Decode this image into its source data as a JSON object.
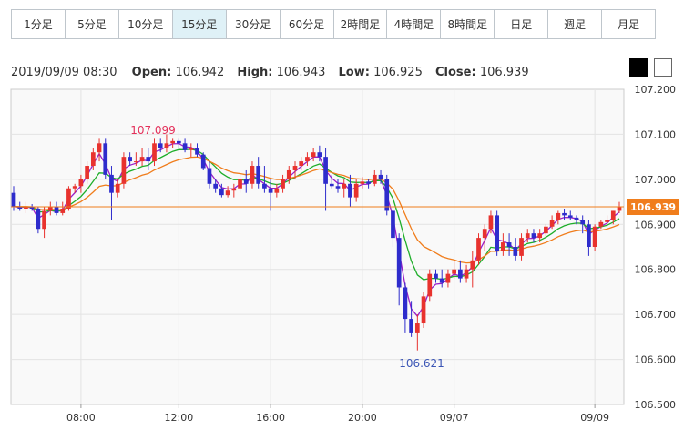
{
  "tabs": [
    {
      "label": "1分足",
      "active": false
    },
    {
      "label": "5分足",
      "active": false
    },
    {
      "label": "10分足",
      "active": false
    },
    {
      "label": "15分足",
      "active": true
    },
    {
      "label": "30分足",
      "active": false
    },
    {
      "label": "60分足",
      "active": false
    },
    {
      "label": "2時間足",
      "active": false
    },
    {
      "label": "4時間足",
      "active": false
    },
    {
      "label": "8時間足",
      "active": false
    },
    {
      "label": "日足",
      "active": false
    },
    {
      "label": "週足",
      "active": false
    },
    {
      "label": "月足",
      "active": false
    }
  ],
  "header": {
    "datetime": "2019/09/09 08:30",
    "open_label": "Open:",
    "open": "106.942",
    "high_label": "High:",
    "high": "106.943",
    "low_label": "Low:",
    "low": "106.925",
    "close_label": "Close:",
    "close": "106.939"
  },
  "theme": {
    "dark_swatch": "#000000",
    "light_swatch": "#ffffff"
  },
  "colors": {
    "up": "#e8322e",
    "down": "#2e2ccc",
    "ma_short": "#9a1fc9",
    "ma_mid": "#1fae2a",
    "ma_long": "#f07d1c",
    "price_line": "#f07d1c",
    "grid": "#e3e3e3",
    "plot_bg": "#f9f9f9",
    "axis_text": "#333333",
    "annotation_high": "#e4305a",
    "annotation_low": "#3b55b5"
  },
  "chart_data": {
    "type": "candlestick",
    "ylim": [
      106.5,
      107.2
    ],
    "yticks": [
      "107.200",
      "107.100",
      "107.000",
      "106.900",
      "106.800",
      "106.700",
      "106.600",
      "106.500"
    ],
    "xticks": [
      "08:00",
      "12:00",
      "16:00",
      "20:00",
      "09/07",
      "09/09"
    ],
    "current_price": "106.939",
    "annotations": {
      "high": "107.099",
      "low": "106.621"
    },
    "candles": [
      [
        106.97,
        106.985,
        106.93,
        106.94
      ],
      [
        106.94,
        106.95,
        106.93,
        106.935
      ],
      [
        106.935,
        106.95,
        106.925,
        106.94
      ],
      [
        106.94,
        106.945,
        106.93,
        106.935
      ],
      [
        106.935,
        106.94,
        106.88,
        106.89
      ],
      [
        106.89,
        106.94,
        106.87,
        106.93
      ],
      [
        106.93,
        106.95,
        106.92,
        106.94
      ],
      [
        106.94,
        106.95,
        106.92,
        106.925
      ],
      [
        106.925,
        106.95,
        106.92,
        106.935
      ],
      [
        106.935,
        106.985,
        106.93,
        106.98
      ],
      [
        106.98,
        106.99,
        106.97,
        106.985
      ],
      [
        106.985,
        107.01,
        106.97,
        107.0
      ],
      [
        107.0,
        107.04,
        106.99,
        107.03
      ],
      [
        107.03,
        107.07,
        107.02,
        107.06
      ],
      [
        107.06,
        107.09,
        107.04,
        107.08
      ],
      [
        107.08,
        107.09,
        107.0,
        107.01
      ],
      [
        107.01,
        107.03,
        106.91,
        106.97
      ],
      [
        106.97,
        107.0,
        106.96,
        106.99
      ],
      [
        106.99,
        107.06,
        106.98,
        107.05
      ],
      [
        107.05,
        107.06,
        107.03,
        107.04
      ],
      [
        107.04,
        107.06,
        107.03,
        107.04
      ],
      [
        107.04,
        107.07,
        107.03,
        107.05
      ],
      [
        107.05,
        107.07,
        107.02,
        107.04
      ],
      [
        107.04,
        107.09,
        107.03,
        107.08
      ],
      [
        107.08,
        107.09,
        107.06,
        107.07
      ],
      [
        107.07,
        107.1,
        107.06,
        107.08
      ],
      [
        107.08,
        107.09,
        107.07,
        107.085
      ],
      [
        107.085,
        107.09,
        107.07,
        107.08
      ],
      [
        107.08,
        107.09,
        107.06,
        107.065
      ],
      [
        107.065,
        107.08,
        107.05,
        107.07
      ],
      [
        107.07,
        107.08,
        107.05,
        107.055
      ],
      [
        107.055,
        107.06,
        107.02,
        107.025
      ],
      [
        107.025,
        107.04,
        106.98,
        106.99
      ],
      [
        106.99,
        107.0,
        106.97,
        106.98
      ],
      [
        106.98,
        106.99,
        106.96,
        106.965
      ],
      [
        106.965,
        106.985,
        106.96,
        106.975
      ],
      [
        106.975,
        106.99,
        106.96,
        106.98
      ],
      [
        106.98,
        107.01,
        106.97,
        107.0
      ],
      [
        107.0,
        107.02,
        106.97,
        106.99
      ],
      [
        106.99,
        107.04,
        106.98,
        107.03
      ],
      [
        107.03,
        107.05,
        106.98,
        106.99
      ],
      [
        106.99,
        107.03,
        106.97,
        106.98
      ],
      [
        106.98,
        107.0,
        106.93,
        106.97
      ],
      [
        106.97,
        106.99,
        106.96,
        106.98
      ],
      [
        106.98,
        107.01,
        106.97,
        107.0
      ],
      [
        107.0,
        107.03,
        106.99,
        107.02
      ],
      [
        107.02,
        107.04,
        107.0,
        107.03
      ],
      [
        107.03,
        107.05,
        107.02,
        107.04
      ],
      [
        107.04,
        107.06,
        107.03,
        107.05
      ],
      [
        107.05,
        107.07,
        107.04,
        107.06
      ],
      [
        107.06,
        107.075,
        107.04,
        107.05
      ],
      [
        107.05,
        107.07,
        106.93,
        106.99
      ],
      [
        106.99,
        107.01,
        106.98,
        106.985
      ],
      [
        106.985,
        107.0,
        106.97,
        106.98
      ],
      [
        106.98,
        107.0,
        106.96,
        106.99
      ],
      [
        106.99,
        107.01,
        106.94,
        106.96
      ],
      [
        106.96,
        107.0,
        106.95,
        106.99
      ],
      [
        106.99,
        107.005,
        106.98,
        106.995
      ],
      [
        106.995,
        107.0,
        106.98,
        106.99
      ],
      [
        106.99,
        107.02,
        106.985,
        107.01
      ],
      [
        107.01,
        107.02,
        106.99,
        107.0
      ],
      [
        107.0,
        107.01,
        106.92,
        106.93
      ],
      [
        106.93,
        106.94,
        106.85,
        106.87
      ],
      [
        106.87,
        106.88,
        106.72,
        106.76
      ],
      [
        106.76,
        106.77,
        106.66,
        106.69
      ],
      [
        106.69,
        106.73,
        106.65,
        106.66
      ],
      [
        106.66,
        106.7,
        106.62,
        106.68
      ],
      [
        106.68,
        106.75,
        106.67,
        106.74
      ],
      [
        106.74,
        106.8,
        106.73,
        106.79
      ],
      [
        106.79,
        106.8,
        106.77,
        106.78
      ],
      [
        106.78,
        106.8,
        106.76,
        106.77
      ],
      [
        106.77,
        106.8,
        106.76,
        106.79
      ],
      [
        106.79,
        106.82,
        106.78,
        106.8
      ],
      [
        106.8,
        106.82,
        106.77,
        106.78
      ],
      [
        106.78,
        106.81,
        106.77,
        106.8
      ],
      [
        106.8,
        106.84,
        106.76,
        106.82
      ],
      [
        106.82,
        106.88,
        106.81,
        106.87
      ],
      [
        106.87,
        106.9,
        106.84,
        106.89
      ],
      [
        106.89,
        106.93,
        106.88,
        106.92
      ],
      [
        106.92,
        106.93,
        106.83,
        106.84
      ],
      [
        106.84,
        106.88,
        106.83,
        106.86
      ],
      [
        106.86,
        106.88,
        106.83,
        106.85
      ],
      [
        106.85,
        106.87,
        106.82,
        106.83
      ],
      [
        106.83,
        106.88,
        106.82,
        106.87
      ],
      [
        106.87,
        106.89,
        106.86,
        106.88
      ],
      [
        106.88,
        106.89,
        106.86,
        106.87
      ],
      [
        106.87,
        106.89,
        106.86,
        106.88
      ],
      [
        106.88,
        106.9,
        106.87,
        106.895
      ],
      [
        106.895,
        106.92,
        106.89,
        106.91
      ],
      [
        106.91,
        106.93,
        106.9,
        106.925
      ],
      [
        106.925,
        106.935,
        106.91,
        106.92
      ],
      [
        106.92,
        106.93,
        106.91,
        106.915
      ],
      [
        106.915,
        106.92,
        106.9,
        106.91
      ],
      [
        106.91,
        106.92,
        106.88,
        106.9
      ],
      [
        106.9,
        106.91,
        106.83,
        106.85
      ],
      [
        106.85,
        106.9,
        106.84,
        106.895
      ],
      [
        106.895,
        106.91,
        106.89,
        106.905
      ],
      [
        106.905,
        106.92,
        106.9,
        106.91
      ],
      [
        106.91,
        106.93,
        106.9,
        106.93
      ],
      [
        106.93,
        106.95,
        106.925,
        106.939
      ]
    ]
  }
}
